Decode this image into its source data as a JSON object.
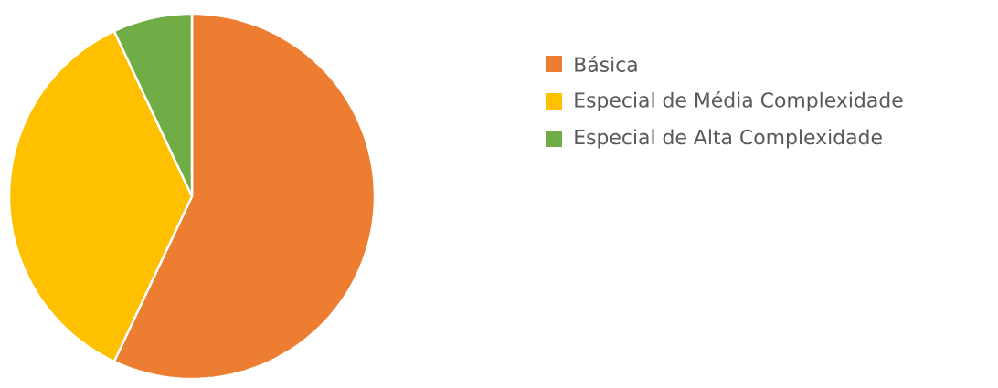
{
  "chart_data": {
    "type": "pie",
    "categories": [
      "Básica",
      "Especial de Média Complexidade",
      "Especial de Alta Complexidade"
    ],
    "values": [
      57,
      36,
      7
    ],
    "colors": [
      "#ed7d31",
      "#ffc000",
      "#70ad47"
    ],
    "legend": "right"
  }
}
